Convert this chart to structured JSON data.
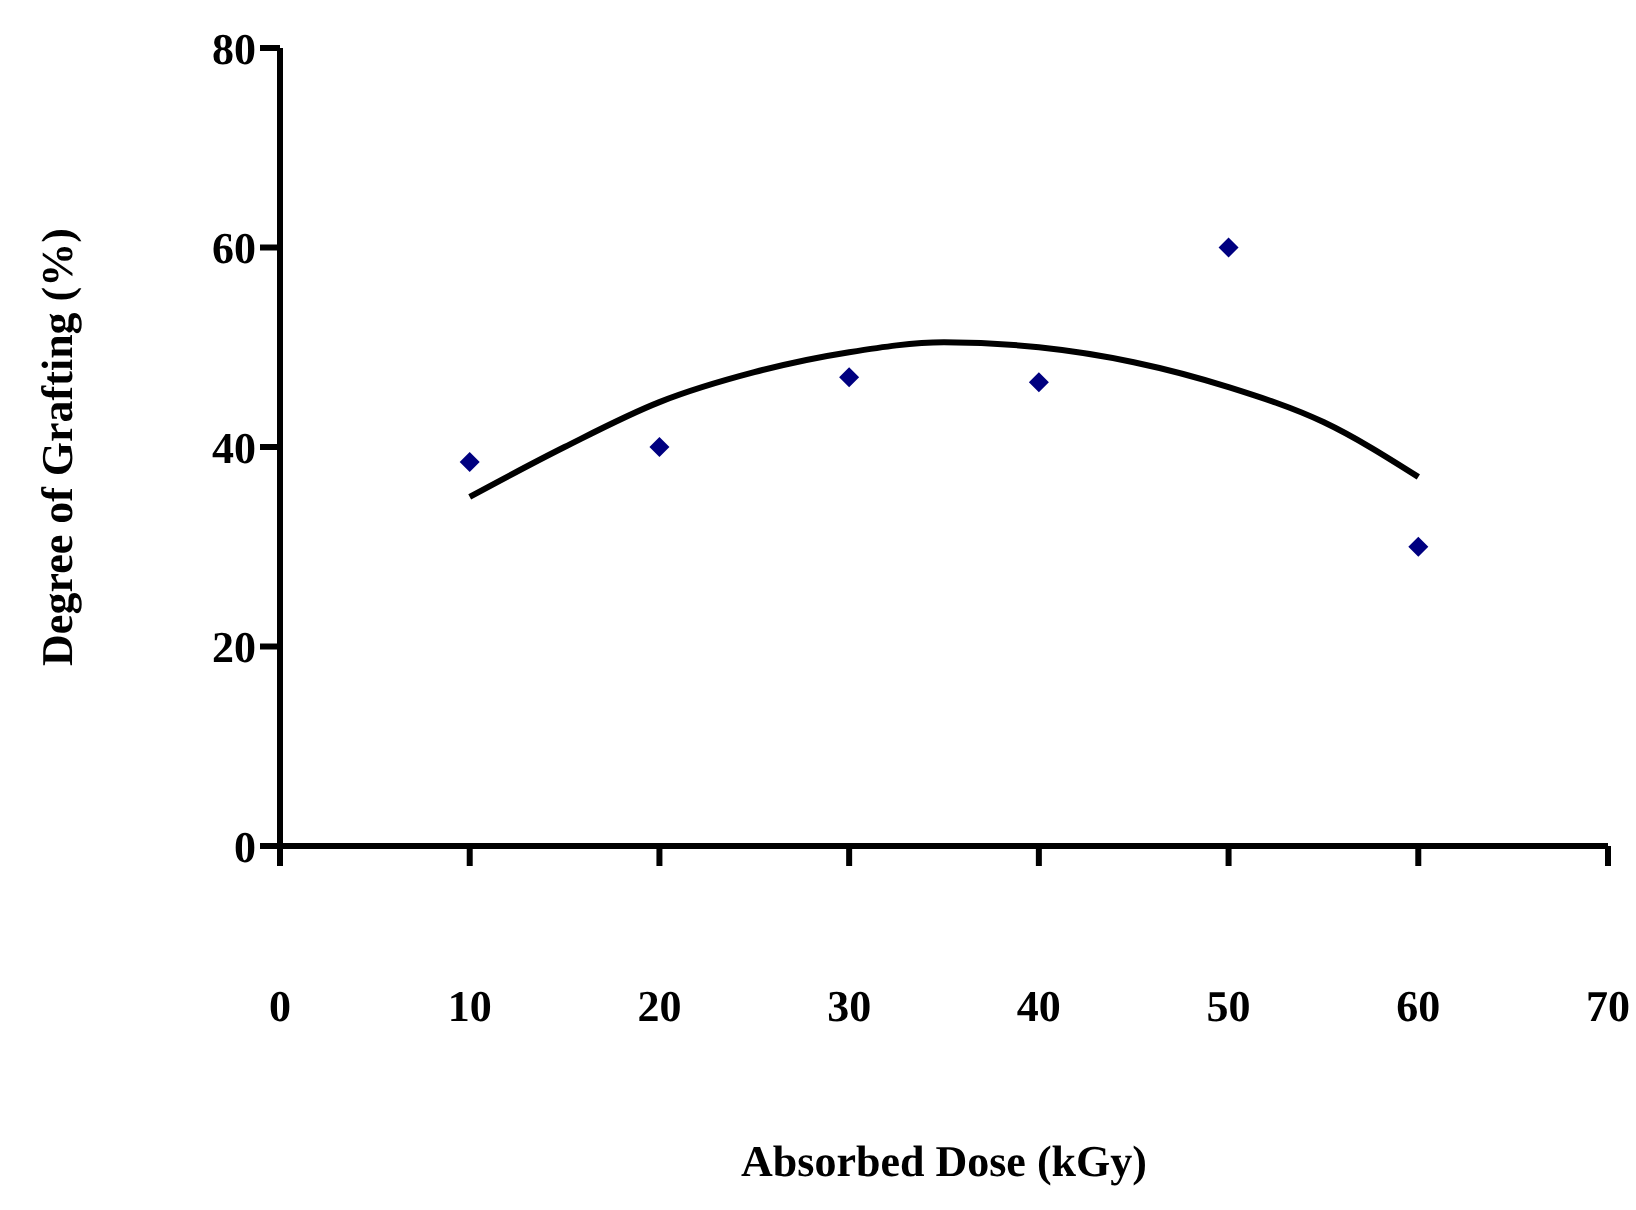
{
  "chart_data": {
    "type": "scatter",
    "xlabel": "Absorbed Dose (kGy)",
    "ylabel": "Degree of Grafting (%)",
    "xlim": [
      0,
      70
    ],
    "xticks": [
      0,
      10,
      20,
      30,
      40,
      50,
      60,
      70
    ],
    "ylim": [
      0,
      80
    ],
    "yticks": [
      0,
      20,
      40,
      60,
      80
    ],
    "grid": false,
    "marker": "diamond",
    "series": [
      {
        "color": "#000080",
        "x": [
          10,
          20,
          30,
          40,
          50,
          60
        ],
        "values": [
          38.5,
          40,
          47,
          46.5,
          60,
          30
        ]
      },
      {
        "type": "line",
        "color": "#000000",
        "marker": "none",
        "x": [
          10,
          15,
          20,
          25,
          30,
          35,
          40,
          45,
          50,
          55,
          60
        ],
        "values": [
          35,
          40,
          44.5,
          47.5,
          49.5,
          50.5,
          50,
          48.5,
          46,
          42.5,
          37
        ]
      }
    ]
  }
}
